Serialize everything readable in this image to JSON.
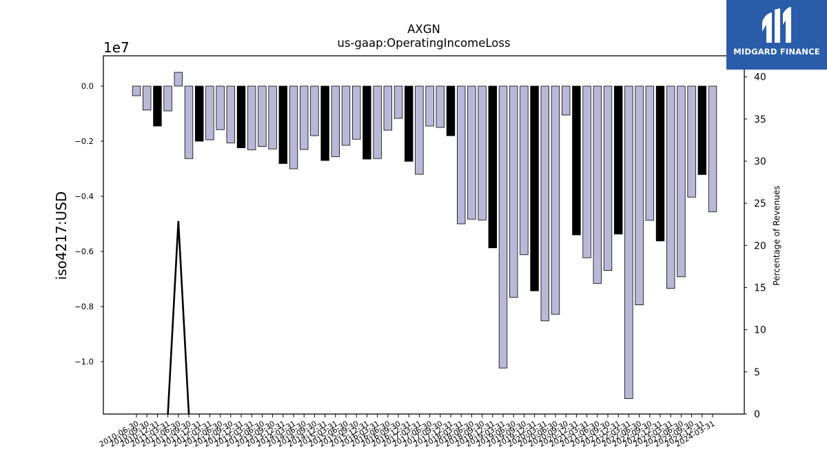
{
  "chart_data": {
    "type": "bar",
    "title": "AXGN",
    "subtitle": "us-gaap:OperatingIncomeLoss",
    "ylabel": "iso4217:USD",
    "y_offset_label": "1e7",
    "y2label": "Percentage of Revenues",
    "ylim": [
      -11900000,
      1100000
    ],
    "y2lim": [
      0,
      42.5
    ],
    "yticks": [
      -10000000,
      -8000000,
      -6000000,
      -4000000,
      -2000000,
      0
    ],
    "ytick_labels": [
      "−1.0",
      "−0.8",
      "−0.6",
      "−0.4",
      "−0.2",
      "0.0"
    ],
    "y2ticks": [
      0,
      5,
      10,
      15,
      20,
      25,
      30,
      35,
      40
    ],
    "colors": {
      "quarterly": "#bab8d8",
      "annual": "#000000",
      "edge": "#000000",
      "line": "#000000"
    },
    "categories": [
      "2010-06-30",
      "2010-09-30",
      "2010-12-31",
      "2011-03-31",
      "2011-06-30",
      "2011-09-30",
      "2011-12-31",
      "2012-03-31",
      "2012-06-30",
      "2012-09-30",
      "2012-12-31",
      "2013-03-31",
      "2013-06-30",
      "2013-09-30",
      "2013-12-31",
      "2014-03-31",
      "2014-06-30",
      "2014-09-30",
      "2014-12-31",
      "2015-03-31",
      "2015-06-30",
      "2015-09-30",
      "2015-12-31",
      "2016-03-31",
      "2016-06-30",
      "2016-09-30",
      "2016-12-31",
      "2017-03-31",
      "2017-06-30",
      "2017-09-30",
      "2017-12-31",
      "2018-03-31",
      "2018-06-30",
      "2018-09-30",
      "2018-12-31",
      "2019-03-31",
      "2019-06-30",
      "2019-09-30",
      "2019-12-31",
      "2020-03-31",
      "2020-06-30",
      "2020-09-30",
      "2020-12-31",
      "2021-03-31",
      "2021-06-30",
      "2021-09-30",
      "2021-12-31",
      "2022-03-31",
      "2022-06-30",
      "2022-09-30",
      "2022-12-31",
      "2023-03-31",
      "2023-06-30",
      "2023-09-30",
      "2023-12-31",
      "2024-03-31"
    ],
    "tick_labels": [
      "2010-06-30",
      "2010-09-30",
      "2010-12-31",
      "2011-03-31",
      "2011-06-30",
      "2011-09-30",
      "2011-12-31",
      "2012-03-31",
      "2012-06-30",
      "2012-09-30",
      "2012-12-31",
      "2013-03-31",
      "2013-06-30",
      "2013-09-30",
      "2013-12-31",
      "2014-03-31",
      "2014-06-30",
      "2014-09-30",
      "2014-12-31",
      "2015-03-31",
      "2015-06-30",
      "2015-09-30",
      "2015-12-31",
      "2016-03-31",
      "2016-06-30",
      "2016-09-30",
      "2016-12-31",
      "2017-03-31",
      "2017-06-30",
      "2017-09-30",
      "2017-12-31",
      "2018-03-31",
      "2018-06-30",
      "2018-09-30",
      "2018-12-31",
      "2019-03-31",
      "2019-06-30",
      "2019-09-30",
      "2019-12-31",
      "2020-03-31",
      "2020-06-30",
      "2020-09-30",
      "2020-12-31",
      "2021-03-31",
      "2021-06-30",
      "2021-09-30",
      "2021-12-31",
      "2022-03-31",
      "2022-06-30",
      "2022-09-30",
      "2022-12-31",
      "2023-03-31",
      "2023-06-30",
      "2023-09-30",
      "2023-12-31",
      "2024-03-31"
    ],
    "series": [
      {
        "values": [
          -350000,
          -870000,
          -1450000,
          -900000,
          500000,
          -2630000,
          -2000000,
          -1950000,
          -1580000,
          -2060000,
          -2240000,
          -2310000,
          -2190000,
          -2280000,
          -2810000,
          -3000000,
          -2300000,
          -1800000,
          -2700000,
          -2560000,
          -2150000,
          -1930000,
          -2650000,
          -2630000,
          -1600000,
          -1170000,
          -2730000,
          -3200000,
          -1450000,
          -1500000,
          -1800000,
          -5000000,
          -4830000,
          -4860000,
          -5870000,
          -10230000,
          -7670000,
          -6120000,
          -7430000,
          -8520000,
          -8280000,
          -1050000,
          -5400000,
          -6230000,
          -7160000,
          -6690000,
          -5370000,
          -11340000,
          -7940000,
          -4870000,
          -5620000,
          -7340000,
          -6920000,
          -4030000,
          -3210000,
          -4560000
        ],
        "annual": [
          false,
          false,
          true,
          false,
          false,
          false,
          true,
          false,
          false,
          false,
          true,
          false,
          false,
          false,
          true,
          false,
          false,
          false,
          true,
          false,
          false,
          false,
          true,
          false,
          false,
          false,
          true,
          false,
          false,
          false,
          true,
          false,
          false,
          false,
          true,
          false,
          false,
          false,
          true,
          false,
          false,
          false,
          true,
          false,
          false,
          false,
          true,
          false,
          false,
          false,
          true,
          false,
          false,
          false,
          true,
          false
        ]
      }
    ],
    "line_series": {
      "x": [
        "2011-03-31",
        "2011-06-30",
        "2011-09-30"
      ],
      "y": [
        0,
        22.9,
        0
      ]
    }
  },
  "logo": {
    "text": "MIDGARD FINANCE"
  }
}
